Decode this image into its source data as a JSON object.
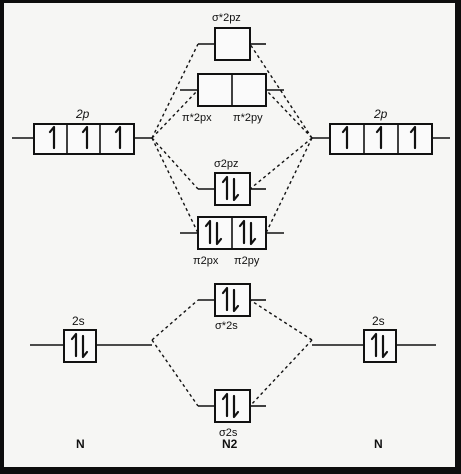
{
  "labels": {
    "left_2p": "2p",
    "right_2p": "2p",
    "left_2s": "2s",
    "right_2s": "2s",
    "sigma_star_2pz": "σ*2pz",
    "pi_star_2px": "π*2px",
    "pi_star_2py": "π*2py",
    "sigma_2pz": "σ2pz",
    "pi_2px": "π2px",
    "pi_2py": "π2py",
    "sigma_star_2s": "σ*2s",
    "sigma_2s": "σ2s",
    "atom_left": "N",
    "molecule": "N2",
    "atom_right": "N"
  },
  "orbitals": {
    "left_2p": [
      1,
      1,
      1
    ],
    "right_2p": [
      1,
      1,
      1
    ],
    "left_2s": [
      2
    ],
    "right_2s": [
      2
    ],
    "sigma_star_2pz": [
      0
    ],
    "pi_star_2p": [
      0,
      0
    ],
    "sigma_2pz": [
      2
    ],
    "pi_2p": [
      2,
      2
    ],
    "sigma_star_2s": [
      2
    ],
    "sigma_2s": [
      2
    ]
  }
}
